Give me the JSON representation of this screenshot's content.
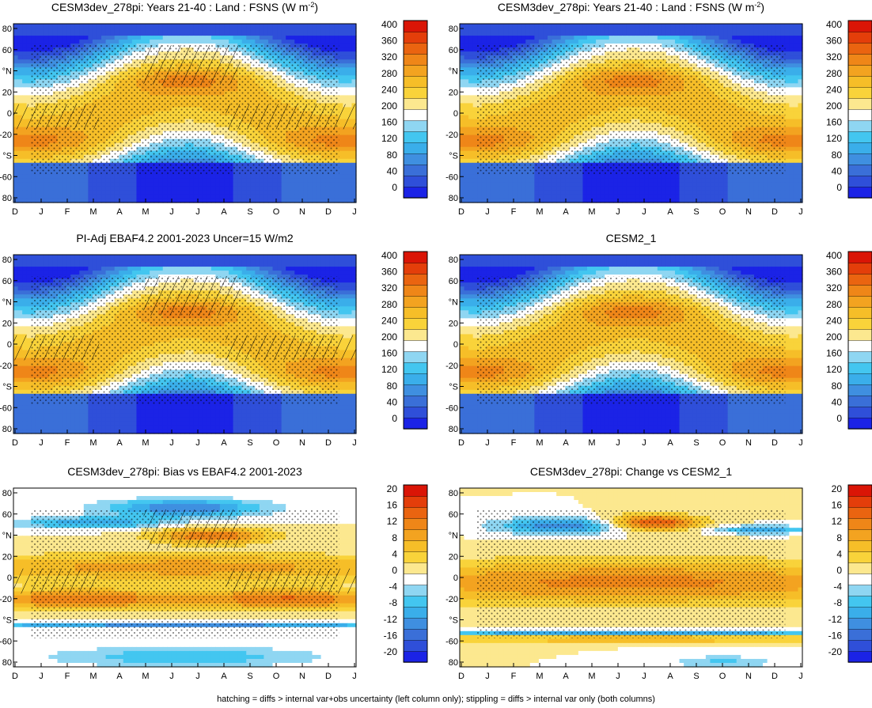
{
  "figure": {
    "footer_note": "hatching = diffs > internal var+obs uncertainty (left column only); stippling = diffs > internal var only (both columns)",
    "months": [
      "D",
      "J",
      "F",
      "M",
      "A",
      "M",
      "J",
      "J",
      "A",
      "S",
      "O",
      "N",
      "D",
      "J"
    ],
    "lat_ticks": [
      "80",
      "60",
      "°N",
      "20",
      "0",
      "-20",
      "°S",
      "-60",
      "80"
    ],
    "colors": {
      "abs_scale": [
        "#1b23e6",
        "#2f4fd9",
        "#3a6fd8",
        "#3f8fe0",
        "#3aaeea",
        "#43c6f0",
        "#8fd6f2",
        "#ffffff",
        "#fce88f",
        "#f9d33a",
        "#f6be28",
        "#f3a320",
        "#ef8618",
        "#ea6410",
        "#e43e0a",
        "#da1506"
      ],
      "diff_scale": [
        "#1b23e6",
        "#2f4fd9",
        "#3a6fd8",
        "#3f8fe0",
        "#3aaeea",
        "#43c6f0",
        "#8fd6f2",
        "#ffffff",
        "#fce88f",
        "#f9d33a",
        "#f6be28",
        "#f3a320",
        "#ef8618",
        "#ea6410",
        "#e43e0a",
        "#da1506"
      ]
    }
  },
  "chart_data": [
    {
      "type": "heatmap",
      "title": "CESM3dev_278pi: Years 21-40 : Land : FSNS (W m-2)",
      "title_main": "CESM3dev_278pi: Years 21-40 : Land : FSNS (W m",
      "title_sup": "-2",
      "title_end": ")",
      "x_categories": [
        "D",
        "J",
        "F",
        "M",
        "A",
        "M",
        "J",
        "J",
        "A",
        "S",
        "O",
        "N",
        "D",
        "J"
      ],
      "y_range": [
        -90,
        90
      ],
      "colorbar_levels": [
        "400",
        "360",
        "320",
        "280",
        "240",
        "200",
        "160",
        "120",
        "80",
        "40",
        "0"
      ],
      "colorbar_range": [
        -20,
        420
      ],
      "field": "absolute",
      "hatching": true,
      "stippling": true
    },
    {
      "type": "heatmap",
      "title": "CESM3dev_278pi: Years 21-40 : Land : FSNS (W m-2)",
      "title_main": "CESM3dev_278pi: Years 21-40 : Land : FSNS (W m",
      "title_sup": "-2",
      "title_end": ")",
      "x_categories": [
        "D",
        "J",
        "F",
        "M",
        "A",
        "M",
        "J",
        "J",
        "A",
        "S",
        "O",
        "N",
        "D",
        "J"
      ],
      "y_range": [
        -90,
        90
      ],
      "colorbar_levels": [
        "400",
        "360",
        "320",
        "280",
        "240",
        "200",
        "160",
        "120",
        "80",
        "40",
        "0"
      ],
      "colorbar_range": [
        -20,
        420
      ],
      "field": "absolute",
      "hatching": false,
      "stippling": true
    },
    {
      "type": "heatmap",
      "title": "PI-Adj EBAF4.2 2001-2023 Uncer=15 W/m2",
      "title_main": "PI-Adj EBAF4.2 2001-2023 Uncer=15 W/m2",
      "title_sup": "",
      "title_end": "",
      "x_categories": [
        "D",
        "J",
        "F",
        "M",
        "A",
        "M",
        "J",
        "J",
        "A",
        "S",
        "O",
        "N",
        "D",
        "J"
      ],
      "y_range": [
        -90,
        90
      ],
      "colorbar_levels": [
        "400",
        "360",
        "320",
        "280",
        "240",
        "200",
        "160",
        "120",
        "80",
        "40",
        "0"
      ],
      "colorbar_range": [
        -20,
        420
      ],
      "field": "absolute",
      "hatching": true,
      "stippling": true
    },
    {
      "type": "heatmap",
      "title": "CESM2_1",
      "title_main": "CESM2_1",
      "title_sup": "",
      "title_end": "",
      "x_categories": [
        "D",
        "J",
        "F",
        "M",
        "A",
        "M",
        "J",
        "J",
        "A",
        "S",
        "O",
        "N",
        "D",
        "J"
      ],
      "y_range": [
        -90,
        90
      ],
      "colorbar_levels": [
        "400",
        "360",
        "320",
        "280",
        "240",
        "200",
        "160",
        "120",
        "80",
        "40",
        "0"
      ],
      "colorbar_range": [
        -20,
        420
      ],
      "field": "absolute",
      "hatching": false,
      "stippling": true
    },
    {
      "type": "heatmap",
      "title": "CESM3dev_278pi: Bias vs EBAF4.2 2001-2023",
      "title_main": "CESM3dev_278pi: Bias vs EBAF4.2 2001-2023",
      "title_sup": "",
      "title_end": "",
      "x_categories": [
        "D",
        "J",
        "F",
        "M",
        "A",
        "M",
        "J",
        "J",
        "A",
        "S",
        "O",
        "N",
        "D",
        "J"
      ],
      "y_range": [
        -90,
        90
      ],
      "colorbar_levels": [
        "20",
        "16",
        "12",
        "8",
        "4",
        "0",
        "-4",
        "-8",
        "-12",
        "-16",
        "-20"
      ],
      "colorbar_range": [
        -22,
        22
      ],
      "field": "bias",
      "hatching": true,
      "stippling": true
    },
    {
      "type": "heatmap",
      "title": "CESM3dev_278pi: Change vs CESM2_1",
      "title_main": "CESM3dev_278pi: Change vs CESM2_1",
      "title_sup": "",
      "title_end": "",
      "x_categories": [
        "D",
        "J",
        "F",
        "M",
        "A",
        "M",
        "J",
        "J",
        "A",
        "S",
        "O",
        "N",
        "D",
        "J"
      ],
      "y_range": [
        -90,
        90
      ],
      "colorbar_levels": [
        "20",
        "16",
        "12",
        "8",
        "4",
        "0",
        "-4",
        "-8",
        "-12",
        "-16",
        "-20"
      ],
      "colorbar_range": [
        -22,
        22
      ],
      "field": "change",
      "hatching": false,
      "stippling": true
    }
  ]
}
